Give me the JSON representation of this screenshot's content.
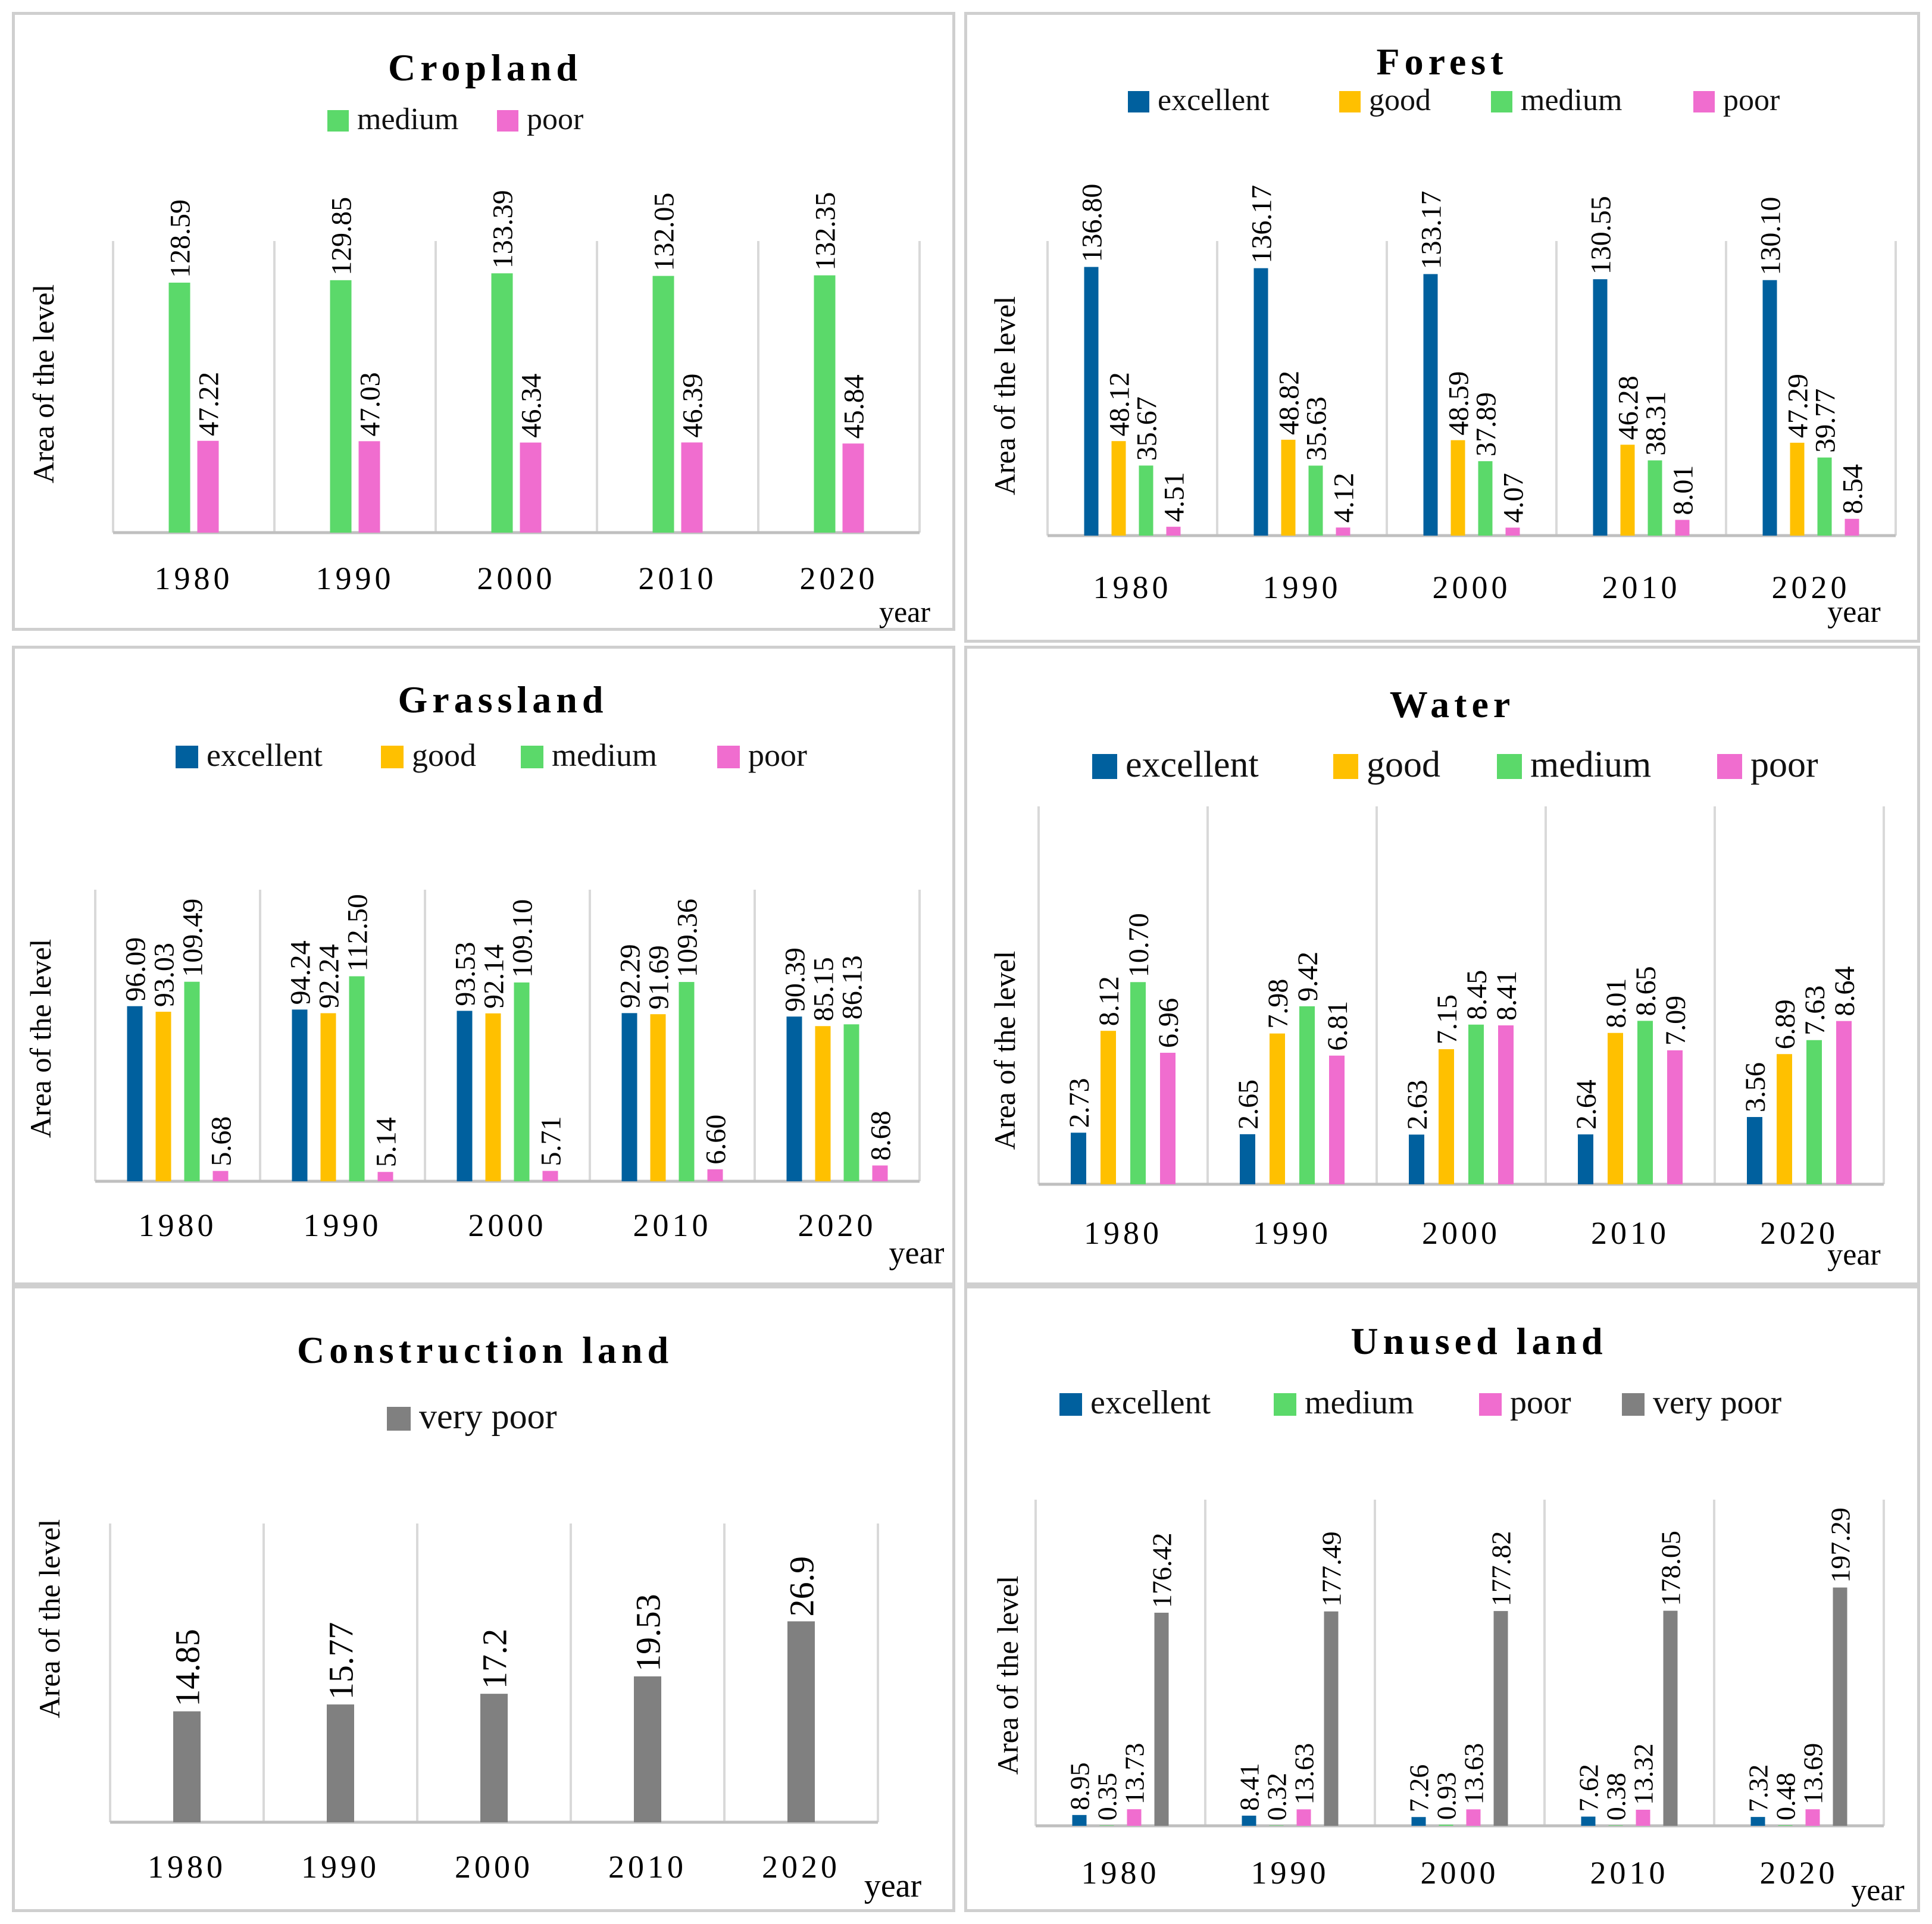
{
  "colors": {
    "excellent": "#00609e",
    "good": "#ffc000",
    "medium": "#5bd96a",
    "poor": "#f06dcf",
    "very_poor": "#808080",
    "gridline": "#d9d9d9",
    "axis": "#bfbfbf"
  },
  "chart_data": [
    {
      "id": "cropland",
      "type": "bar",
      "title": "Cropland",
      "xlabel": "year",
      "ylabel": "Area of the level",
      "categories": [
        "1980",
        "1990",
        "2000",
        "2010",
        "2020"
      ],
      "legend": [
        "medium",
        "poor"
      ],
      "series": [
        {
          "name": "medium",
          "color_key": "medium",
          "values": [
            128.59,
            129.85,
            133.39,
            132.05,
            132.35
          ],
          "labels": [
            "128.59",
            "129.85",
            "133.39",
            "132.05",
            "132.35"
          ]
        },
        {
          "name": "poor",
          "color_key": "poor",
          "values": [
            47.22,
            47.03,
            46.34,
            46.39,
            45.84
          ],
          "labels": [
            "47.22",
            "47.03",
            "46.34",
            "46.39",
            "45.84"
          ]
        }
      ],
      "ylim": [
        0,
        150
      ]
    },
    {
      "id": "forest",
      "type": "bar",
      "title": "Forest",
      "xlabel": "year",
      "ylabel": "Area of the level",
      "categories": [
        "1980",
        "1990",
        "2000",
        "2010",
        "2020"
      ],
      "legend": [
        "excellent",
        "good",
        "medium",
        "poor"
      ],
      "series": [
        {
          "name": "excellent",
          "color_key": "excellent",
          "values": [
            136.8,
            136.17,
            133.17,
            130.55,
            130.1
          ],
          "labels": [
            "136.80",
            "136.17",
            "133.17",
            "130.55",
            "130.10"
          ]
        },
        {
          "name": "good",
          "color_key": "good",
          "values": [
            48.12,
            48.82,
            48.59,
            46.28,
            47.29
          ],
          "labels": [
            "48.12",
            "48.82",
            "48.59",
            "46.28",
            "47.29"
          ]
        },
        {
          "name": "medium",
          "color_key": "medium",
          "values": [
            35.67,
            35.63,
            37.89,
            38.31,
            39.77
          ],
          "labels": [
            "35.67",
            "35.63",
            "37.89",
            "38.31",
            "39.77"
          ]
        },
        {
          "name": "poor",
          "color_key": "poor",
          "values": [
            4.51,
            4.12,
            4.07,
            8.01,
            8.54
          ],
          "labels": [
            "4.51",
            "4.12",
            "4.07",
            "8.01",
            "8.54"
          ]
        }
      ],
      "ylim": [
        0,
        150
      ]
    },
    {
      "id": "grassland",
      "type": "bar",
      "title": "Grassland",
      "xlabel": "year",
      "ylabel": "Area of the level",
      "categories": [
        "1980",
        "1990",
        "2000",
        "2010",
        "2020"
      ],
      "legend": [
        "excellent",
        "good",
        "medium",
        "poor"
      ],
      "series": [
        {
          "name": "excellent",
          "color_key": "excellent",
          "values": [
            96.09,
            94.24,
            93.53,
            92.29,
            90.39
          ],
          "labels": [
            "96.09",
            "94.24",
            "93.53",
            "92.29",
            "90.39"
          ]
        },
        {
          "name": "good",
          "color_key": "good",
          "values": [
            93.03,
            92.24,
            92.14,
            91.69,
            85.15
          ],
          "labels": [
            "93.03",
            "92.24",
            "92.14",
            "91.69",
            "85.15"
          ]
        },
        {
          "name": "medium",
          "color_key": "medium",
          "values": [
            109.49,
            112.5,
            109.1,
            109.36,
            86.13
          ],
          "labels": [
            "109.49",
            "112.50",
            "109.10",
            "109.36",
            "86.13"
          ]
        },
        {
          "name": "poor",
          "color_key": "poor",
          "values": [
            5.68,
            5.14,
            5.71,
            6.6,
            8.68
          ],
          "labels": [
            "5.68",
            "5.14",
            "5.71",
            "6.60",
            "8.68"
          ]
        }
      ],
      "ylim": [
        0,
        160
      ]
    },
    {
      "id": "water",
      "type": "bar",
      "title": "Water",
      "xlabel": "year",
      "ylabel": "Area of the level",
      "categories": [
        "1980",
        "1990",
        "2000",
        "2010",
        "2020"
      ],
      "legend": [
        "excellent",
        "good",
        "medium",
        "poor"
      ],
      "series": [
        {
          "name": "excellent",
          "color_key": "excellent",
          "values": [
            2.73,
            2.65,
            2.63,
            2.64,
            3.56
          ],
          "labels": [
            "2.73",
            "2.65",
            "2.63",
            "2.64",
            "3.56"
          ]
        },
        {
          "name": "good",
          "color_key": "good",
          "values": [
            8.12,
            7.98,
            7.15,
            8.01,
            6.89
          ],
          "labels": [
            "8.12",
            "7.98",
            "7.15",
            "8.01",
            "6.89"
          ]
        },
        {
          "name": "medium",
          "color_key": "medium",
          "values": [
            10.7,
            9.42,
            8.45,
            8.65,
            7.63
          ],
          "labels": [
            "10.70",
            "9.42",
            "8.45",
            "8.65",
            "7.63"
          ]
        },
        {
          "name": "poor",
          "color_key": "poor",
          "values": [
            6.96,
            6.81,
            8.41,
            7.09,
            8.64
          ],
          "labels": [
            "6.96",
            "6.81",
            "8.41",
            "7.09",
            "8.64"
          ]
        }
      ],
      "ylim": [
        0,
        20
      ]
    },
    {
      "id": "construction",
      "type": "bar",
      "title": "Construction land",
      "xlabel": "year",
      "ylabel": "Area of the level",
      "categories": [
        "1980",
        "1990",
        "2000",
        "2010",
        "2020"
      ],
      "legend": [
        "very poor"
      ],
      "series": [
        {
          "name": "very poor",
          "color_key": "very_poor",
          "values": [
            14.85,
            15.77,
            17.2,
            19.53,
            26.9
          ],
          "labels": [
            "14.85",
            "15.77",
            "17.2",
            "19.53",
            "26.9"
          ]
        }
      ],
      "ylim": [
        0,
        40
      ]
    },
    {
      "id": "unused",
      "type": "bar",
      "title": "Unused land",
      "xlabel": "year",
      "ylabel": "Area of the level",
      "categories": [
        "1980",
        "1990",
        "2000",
        "2010",
        "2020"
      ],
      "legend": [
        "excellent",
        "medium",
        "poor",
        "very poor"
      ],
      "series": [
        {
          "name": "excellent",
          "color_key": "excellent",
          "values": [
            8.95,
            8.41,
            7.26,
            7.62,
            7.32
          ],
          "labels": [
            "8.95",
            "8.41",
            "7.26",
            "7.62",
            "7.32"
          ]
        },
        {
          "name": "medium",
          "color_key": "medium",
          "values": [
            0.35,
            0.32,
            0.93,
            0.38,
            0.48
          ],
          "labels": [
            "0.35",
            "0.32",
            "0.93",
            "0.38",
            "0.48"
          ]
        },
        {
          "name": "poor",
          "color_key": "poor",
          "values": [
            13.73,
            13.63,
            13.63,
            13.32,
            13.69
          ],
          "labels": [
            "13.73",
            "13.63",
            "13.63",
            "13.32",
            "13.69"
          ]
        },
        {
          "name": "very poor",
          "color_key": "very_poor",
          "values": [
            176.42,
            177.49,
            177.82,
            178.05,
            197.29
          ],
          "labels": [
            "176.42",
            "177.49",
            "177.82",
            "178.05",
            "197.29"
          ]
        }
      ],
      "ylim": [
        0,
        270
      ]
    }
  ]
}
